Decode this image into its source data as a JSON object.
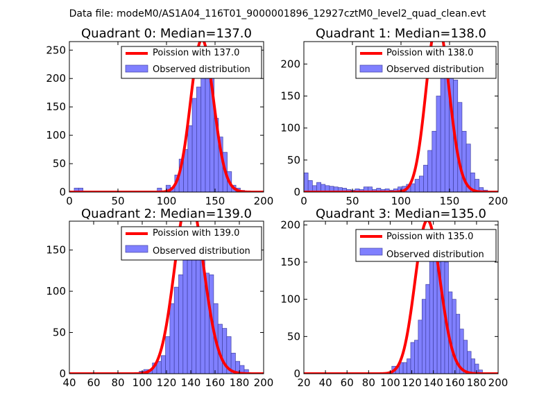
{
  "figure": {
    "suptitle": "Data file: modeM0/AS1A04_116T01_9000001896_12927cztM0_level2_quad_clean.evt",
    "bar_color": "#8080ff",
    "bar_edge": "#4040a0",
    "curve_color": "#ff0000"
  },
  "chart_data": [
    {
      "type": "bar",
      "title": "Quadrant 0: Median=137.0",
      "median": 137.0,
      "xlim": [
        0,
        200
      ],
      "ylim": [
        0,
        265
      ],
      "xticks": [
        0,
        50,
        100,
        150,
        200
      ],
      "yticks": [
        0,
        50,
        100,
        150,
        200,
        250
      ],
      "bin_width": 4.5,
      "bins_x": [
        5,
        9.5,
        14,
        18.5,
        23,
        27.5,
        32,
        36.5,
        41,
        45.5,
        50,
        54.5,
        59,
        63.5,
        68,
        72.5,
        77,
        81.5,
        86,
        90.5,
        95,
        99.5,
        104,
        108.5,
        113,
        117.5,
        122,
        126.5,
        131,
        135.5,
        140,
        144.5,
        149,
        153.5,
        158,
        162.5,
        167,
        171.5,
        176,
        180.5
      ],
      "values": [
        7,
        7,
        2,
        1,
        1,
        1,
        1,
        1,
        1,
        1,
        1,
        1,
        1,
        1,
        1,
        1,
        1,
        1,
        1,
        7,
        2,
        12,
        8,
        30,
        58,
        75,
        117,
        165,
        185,
        225,
        250,
        232,
        130,
        97,
        70,
        36,
        12,
        7,
        3,
        1
      ],
      "legend": [
        "Poission with 137.0",
        "Observed distribution"
      ]
    },
    {
      "type": "bar",
      "title": "Quadrant 1: Median=138.0",
      "median": 138.0,
      "xlim": [
        0,
        200
      ],
      "ylim": [
        0,
        235
      ],
      "xticks": [
        0,
        50,
        100,
        150,
        200
      ],
      "yticks": [
        0,
        50,
        100,
        150,
        200
      ],
      "bin_width": 4.4,
      "bins_x": [
        0,
        4.4,
        8.8,
        13.2,
        17.6,
        22,
        26.4,
        30.8,
        35.2,
        39.6,
        44,
        48.4,
        52.8,
        57.2,
        61.6,
        66,
        70.4,
        74.8,
        79.2,
        83.6,
        88,
        92.4,
        96.8,
        101.2,
        105.6,
        110,
        114.4,
        118.8,
        123.2,
        127.6,
        132,
        136.4,
        140.8,
        145.2,
        149.6,
        154,
        158.4,
        162.8,
        167.2,
        171.6,
        176,
        180.4,
        184.8
      ],
      "values": [
        30,
        18,
        10,
        15,
        12,
        10,
        9,
        8,
        7,
        6,
        4,
        3,
        5,
        4,
        8,
        8,
        4,
        6,
        4,
        5,
        3,
        5,
        8,
        9,
        12,
        13,
        20,
        25,
        42,
        65,
        95,
        150,
        205,
        215,
        200,
        175,
        140,
        95,
        75,
        30,
        20,
        7,
        3
      ],
      "legend": [
        "Poission with 138.0",
        "Observed distribution"
      ]
    },
    {
      "type": "bar",
      "title": "Quadrant 2: Median=139.0",
      "median": 139.0,
      "xlim": [
        40,
        200
      ],
      "ylim": [
        0,
        185
      ],
      "xticks": [
        40,
        60,
        80,
        100,
        120,
        140,
        160,
        180,
        200
      ],
      "yticks": [
        0,
        50,
        100,
        150
      ],
      "bin_width": 3.6,
      "bins_x": [
        40,
        43.6,
        47.2,
        50.8,
        54.4,
        58,
        61.6,
        65.2,
        68.8,
        72.4,
        76,
        79.6,
        83.2,
        86.8,
        90.4,
        94,
        97.6,
        101.2,
        104.8,
        108.4,
        112,
        115.6,
        119.2,
        122.8,
        126.4,
        130,
        133.6,
        137.2,
        140.8,
        144.4,
        148,
        151.6,
        155.2,
        158.8,
        162.4,
        166,
        169.6,
        173.2,
        176.8,
        180.4,
        184,
        187.6
      ],
      "values": [
        0,
        0,
        0,
        0,
        0,
        0,
        0,
        0,
        0,
        0,
        0,
        0,
        0,
        0,
        0,
        0,
        3,
        5,
        5,
        13,
        15,
        22,
        45,
        85,
        105,
        120,
        160,
        158,
        165,
        170,
        165,
        122,
        120,
        85,
        60,
        55,
        45,
        25,
        15,
        10,
        5,
        0
      ],
      "legend": [
        "Poission with 139.0",
        "Observed distribution"
      ]
    },
    {
      "type": "bar",
      "title": "Quadrant 3: Median=135.0",
      "median": 135.0,
      "xlim": [
        20,
        200
      ],
      "ylim": [
        0,
        205
      ],
      "xticks": [
        20,
        40,
        60,
        80,
        100,
        120,
        140,
        160,
        180,
        200
      ],
      "yticks": [
        0,
        50,
        100,
        150,
        200
      ],
      "bin_width": 3.5,
      "bins_x": [
        35,
        38.5,
        42,
        45.5,
        49,
        52.5,
        56,
        59.5,
        63,
        66.5,
        70,
        73.5,
        77,
        80.5,
        84,
        87.5,
        91,
        94.5,
        98,
        101.5,
        105,
        108.5,
        112,
        115.5,
        119,
        122.5,
        126,
        129.5,
        133,
        136.5,
        140,
        143.5,
        147,
        150.5,
        154,
        157.5,
        161,
        164.5,
        168,
        171.5,
        175,
        178.5,
        182
      ],
      "values": [
        0,
        0,
        0,
        0,
        0,
        0,
        0,
        0,
        0,
        0,
        0,
        0,
        0,
        0,
        0,
        0,
        0,
        0,
        2,
        10,
        10,
        15,
        15,
        20,
        42,
        45,
        72,
        100,
        120,
        160,
        165,
        150,
        180,
        150,
        110,
        100,
        80,
        60,
        45,
        30,
        20,
        13,
        5
      ],
      "legend": [
        "Poission with 135.0",
        "Observed distribution"
      ]
    }
  ]
}
